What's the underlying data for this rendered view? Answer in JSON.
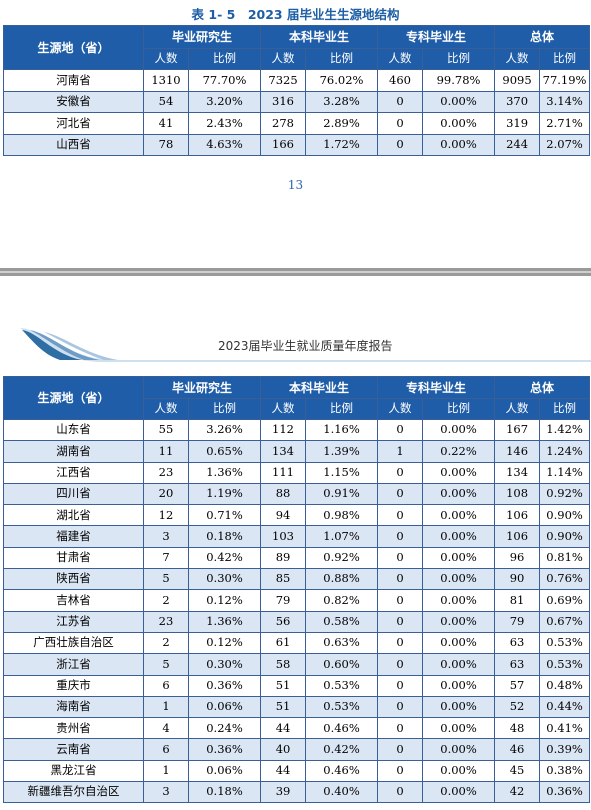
{
  "top_page": {
    "table_title": "表 1- 5　2023 届毕业生生源地结构",
    "page_number": "13",
    "table": {
      "origin_header": "生源地（省）",
      "group_headers": [
        "毕业研究生",
        "本科毕业生",
        "专科毕业生",
        "总体"
      ],
      "sub_headers": [
        "人数",
        "比例",
        "人数",
        "比例",
        "人数",
        "比例",
        "人数",
        "比例"
      ],
      "rows": [
        [
          "河南省",
          "1310",
          "77.70%",
          "7325",
          "76.02%",
          "460",
          "99.78%",
          "9095",
          "77.19%"
        ],
        [
          "安徽省",
          "54",
          "3.20%",
          "316",
          "3.28%",
          "0",
          "0.00%",
          "370",
          "3.14%"
        ],
        [
          "河北省",
          "41",
          "2.43%",
          "278",
          "2.89%",
          "0",
          "0.00%",
          "319",
          "2.71%"
        ],
        [
          "山西省",
          "78",
          "4.63%",
          "166",
          "1.72%",
          "0",
          "0.00%",
          "244",
          "2.07%"
        ]
      ]
    }
  },
  "bottom_page": {
    "report_title": "2023届毕业生就业质量年度报告",
    "colors": {
      "header_bg": "#1f5da8",
      "alt_row_bg": "#dbe6f4",
      "band_dark": "#2f6da5",
      "band_light": "#cfe0ef"
    },
    "table": {
      "origin_header": "生源地（省）",
      "group_headers": [
        "毕业研究生",
        "本科毕业生",
        "专科毕业生",
        "总体"
      ],
      "sub_headers": [
        "人数",
        "比例",
        "人数",
        "比例",
        "人数",
        "比例",
        "人数",
        "比例"
      ],
      "rows": [
        [
          "山东省",
          "55",
          "3.26%",
          "112",
          "1.16%",
          "0",
          "0.00%",
          "167",
          "1.42%"
        ],
        [
          "湖南省",
          "11",
          "0.65%",
          "134",
          "1.39%",
          "1",
          "0.22%",
          "146",
          "1.24%"
        ],
        [
          "江西省",
          "23",
          "1.36%",
          "111",
          "1.15%",
          "0",
          "0.00%",
          "134",
          "1.14%"
        ],
        [
          "四川省",
          "20",
          "1.19%",
          "88",
          "0.91%",
          "0",
          "0.00%",
          "108",
          "0.92%"
        ],
        [
          "湖北省",
          "12",
          "0.71%",
          "94",
          "0.98%",
          "0",
          "0.00%",
          "106",
          "0.90%"
        ],
        [
          "福建省",
          "3",
          "0.18%",
          "103",
          "1.07%",
          "0",
          "0.00%",
          "106",
          "0.90%"
        ],
        [
          "甘肃省",
          "7",
          "0.42%",
          "89",
          "0.92%",
          "0",
          "0.00%",
          "96",
          "0.81%"
        ],
        [
          "陕西省",
          "5",
          "0.30%",
          "85",
          "0.88%",
          "0",
          "0.00%",
          "90",
          "0.76%"
        ],
        [
          "吉林省",
          "2",
          "0.12%",
          "79",
          "0.82%",
          "0",
          "0.00%",
          "81",
          "0.69%"
        ],
        [
          "江苏省",
          "23",
          "1.36%",
          "56",
          "0.58%",
          "0",
          "0.00%",
          "79",
          "0.67%"
        ],
        [
          "广西壮族自治区",
          "2",
          "0.12%",
          "61",
          "0.63%",
          "0",
          "0.00%",
          "63",
          "0.53%"
        ],
        [
          "浙江省",
          "5",
          "0.30%",
          "58",
          "0.60%",
          "0",
          "0.00%",
          "63",
          "0.53%"
        ],
        [
          "重庆市",
          "6",
          "0.36%",
          "51",
          "0.53%",
          "0",
          "0.00%",
          "57",
          "0.48%"
        ],
        [
          "海南省",
          "1",
          "0.06%",
          "51",
          "0.53%",
          "0",
          "0.00%",
          "52",
          "0.44%"
        ],
        [
          "贵州省",
          "4",
          "0.24%",
          "44",
          "0.46%",
          "0",
          "0.00%",
          "48",
          "0.41%"
        ],
        [
          "云南省",
          "6",
          "0.36%",
          "40",
          "0.42%",
          "0",
          "0.00%",
          "46",
          "0.39%"
        ],
        [
          "黑龙江省",
          "1",
          "0.06%",
          "44",
          "0.46%",
          "0",
          "0.00%",
          "45",
          "0.38%"
        ],
        [
          "新疆维吾尔自治区",
          "3",
          "0.18%",
          "39",
          "0.40%",
          "0",
          "0.00%",
          "42",
          "0.36%"
        ]
      ]
    }
  }
}
